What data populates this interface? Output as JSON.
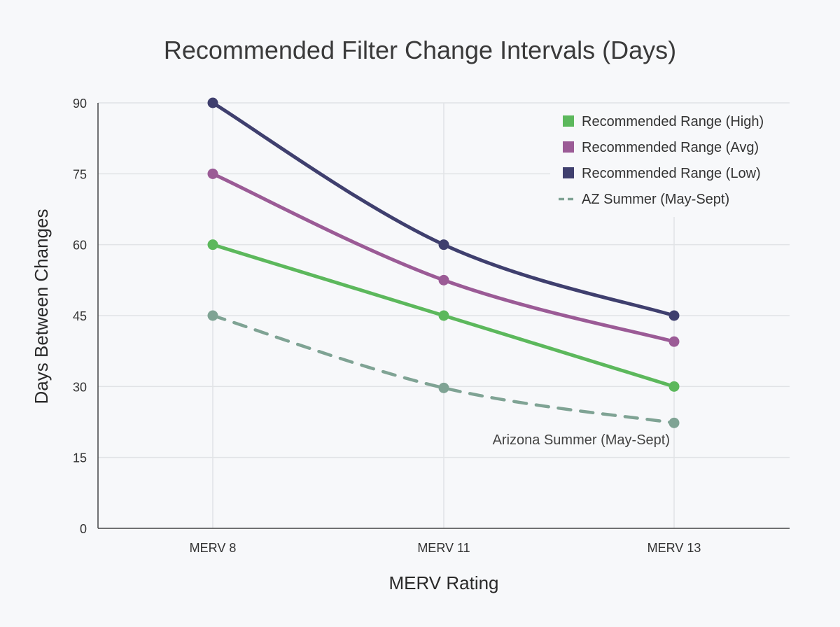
{
  "chart_data": {
    "type": "line",
    "title": "Recommended Filter Change Intervals (Days)",
    "xlabel": "MERV Rating",
    "ylabel": "Days Between Changes",
    "categories": [
      "MERV 8",
      "MERV 11",
      "MERV 13"
    ],
    "ylim": [
      0,
      90
    ],
    "yticks": [
      0,
      15,
      30,
      45,
      60,
      75,
      90
    ],
    "grid": true,
    "legend_position": "top-right",
    "series": [
      {
        "name": "Recommended Range (High)",
        "values": [
          60,
          45,
          30
        ],
        "color": "#5cb85c",
        "style": "solid"
      },
      {
        "name": "Recommended Range (Avg)",
        "values": [
          75,
          52.5,
          39.5
        ],
        "color": "#9b5b96",
        "style": "solid"
      },
      {
        "name": "Recommended Range (Low)",
        "values": [
          90,
          60,
          45
        ],
        "color": "#3f3f6e",
        "style": "solid"
      },
      {
        "name": "AZ Summer (May-Sept)",
        "values": [
          45,
          29.7,
          22.3
        ],
        "color": "#7fa394",
        "style": "dashed"
      }
    ],
    "annotations": [
      {
        "text": "Arizona Summer (May-Sept)",
        "series_index": 3
      }
    ]
  }
}
